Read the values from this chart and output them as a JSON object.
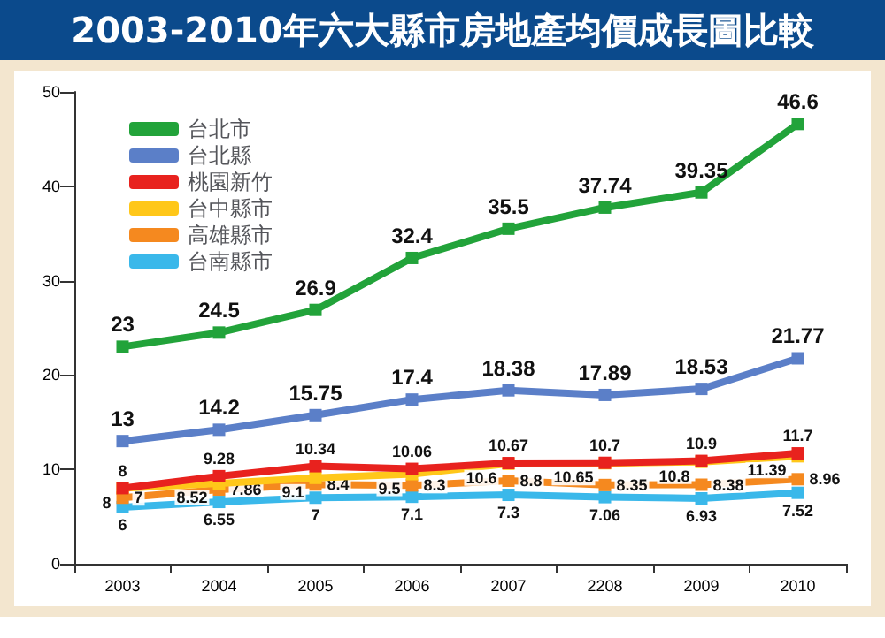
{
  "chart_data": {
    "type": "line",
    "title": "2003-2010年六大縣市房地產均價成長圖比較",
    "categories": [
      "2003",
      "2004",
      "2005",
      "2006",
      "2007",
      "2208",
      "2009",
      "2010"
    ],
    "series": [
      {
        "name": "台北市",
        "color": "#22a33a",
        "values": [
          23,
          24.5,
          26.9,
          32.4,
          35.5,
          37.74,
          39.35,
          46.6
        ]
      },
      {
        "name": "台北縣",
        "color": "#5b7fc8",
        "values": [
          13,
          14.2,
          15.75,
          17.4,
          18.38,
          17.89,
          18.53,
          21.77
        ]
      },
      {
        "name": "桃園新竹",
        "color": "#e8221e",
        "values": [
          8,
          9.28,
          10.34,
          10.06,
          10.67,
          10.7,
          10.9,
          11.7
        ]
      },
      {
        "name": "台中縣市",
        "color": "#ffc719",
        "values": [
          8,
          8.52,
          9.1,
          9.5,
          10.6,
          10.65,
          10.8,
          11.39
        ]
      },
      {
        "name": "高雄縣市",
        "color": "#f5891f",
        "values": [
          7,
          7.86,
          8.4,
          8.3,
          8.8,
          8.35,
          8.38,
          8.96
        ]
      },
      {
        "name": "台南縣市",
        "color": "#3ab8ea",
        "values": [
          6,
          6.55,
          7,
          7.1,
          7.3,
          7.06,
          6.93,
          7.52
        ]
      }
    ],
    "ylim": [
      0,
      50
    ],
    "yticks": [
      0,
      10,
      20,
      30,
      40,
      50
    ],
    "grid": false,
    "legend": "top left",
    "marker": "square",
    "line_style": "solid",
    "data_labels": true
  }
}
